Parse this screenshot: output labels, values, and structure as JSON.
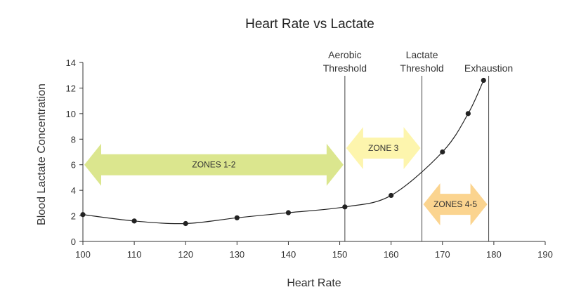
{
  "chart_data": {
    "type": "line",
    "title": "Heart Rate vs Lactate",
    "xlabel": "Heart Rate",
    "ylabel": "Blood Lactate Concentration",
    "xlim": [
      100,
      190
    ],
    "ylim": [
      0,
      14
    ],
    "xticks": [
      100,
      110,
      120,
      130,
      140,
      150,
      160,
      170,
      180,
      190
    ],
    "yticks": [
      0,
      2,
      4,
      6,
      8,
      10,
      12,
      14
    ],
    "grid": false,
    "series": [
      {
        "name": "Blood Lactate",
        "x": [
          100,
          110,
          120,
          130,
          140,
          151,
          160,
          170,
          175,
          178
        ],
        "y": [
          2.1,
          1.6,
          1.4,
          1.85,
          2.25,
          2.7,
          3.6,
          7.0,
          10.0,
          12.6
        ]
      }
    ],
    "vlines": [
      {
        "x": 151,
        "label_lines": [
          "Aerobic",
          "Threshold"
        ]
      },
      {
        "x": 166,
        "label_lines": [
          "Lactate",
          "Threshold"
        ]
      },
      {
        "x": 179,
        "label_lines": [
          "Exhaustion"
        ]
      }
    ],
    "zones": [
      {
        "label": "ZONES 1-2",
        "x_start": 100,
        "x_end": 151,
        "y_center": 6.0,
        "color": "#dbe68e"
      },
      {
        "label": "ZONE 3",
        "x_start": 151,
        "x_end": 166,
        "y_center": 7.3,
        "color": "#fdf5ad"
      },
      {
        "label": "ZONES 4-5",
        "x_start": 166,
        "x_end": 179,
        "y_center": 2.9,
        "color": "#fbd48f"
      }
    ],
    "colors": {
      "line": "#222222",
      "point": "#222222",
      "axis": "#333333",
      "vline": "#444444"
    }
  }
}
